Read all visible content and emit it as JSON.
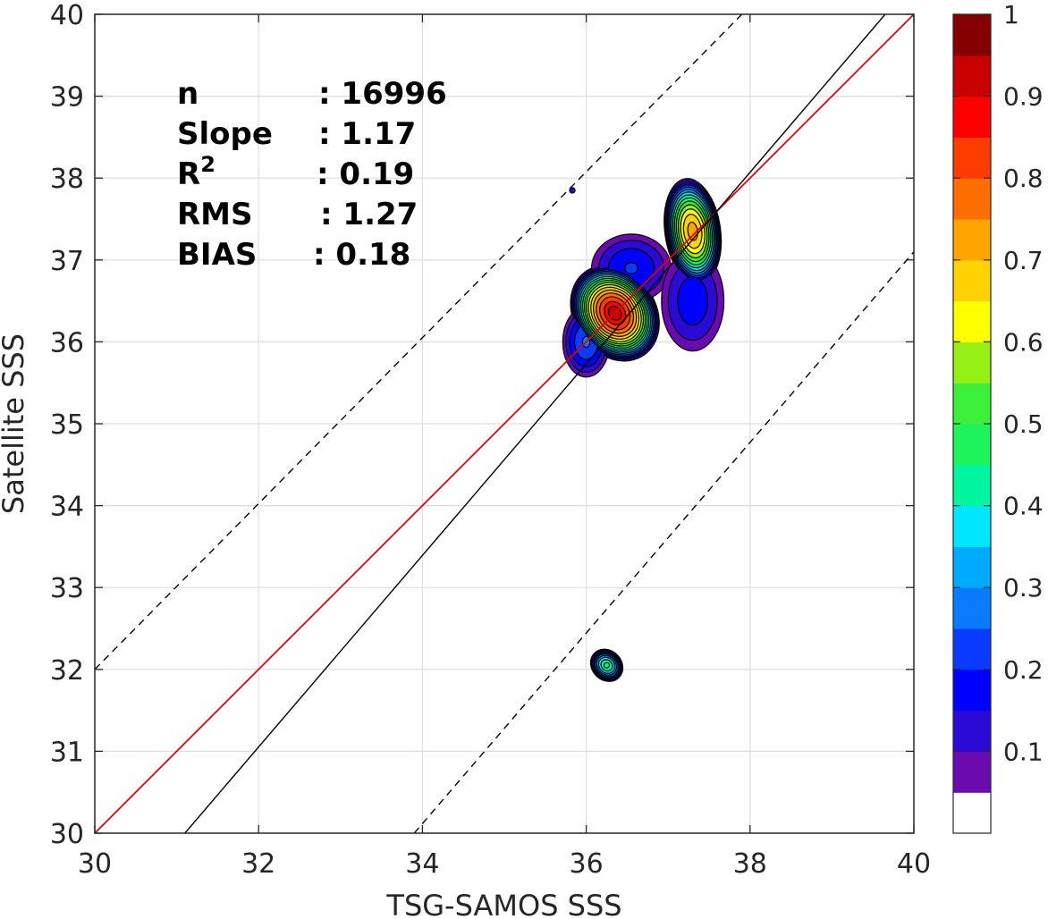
{
  "chart_data": {
    "type": "contour-density",
    "xlabel": "TSG-SAMOS SSS",
    "ylabel": "Satellite SSS",
    "xlim": [
      30,
      40
    ],
    "ylim": [
      30,
      40
    ],
    "x_ticks": [
      30,
      32,
      34,
      36,
      38,
      40
    ],
    "y_ticks": [
      30,
      31,
      32,
      33,
      34,
      35,
      36,
      37,
      38,
      39,
      40
    ],
    "grid": true,
    "stats": [
      {
        "label": "n",
        "sep": ":",
        "value": "16996"
      },
      {
        "label": "Slope",
        "sep": ":",
        "value": "1.17"
      },
      {
        "label": "R",
        "sup": "2",
        "sep": ":",
        "value": "0.19"
      },
      {
        "label": "RMS",
        "sep": ":",
        "value": "1.27"
      },
      {
        "label": "BIAS",
        "sep": ":",
        "value": "0.18"
      }
    ],
    "lines": [
      {
        "kind": "one-to-one",
        "color": "#e00000",
        "style": "solid",
        "points": [
          [
            30,
            30
          ],
          [
            40,
            40
          ]
        ]
      },
      {
        "kind": "regression",
        "color": "#000000",
        "style": "solid",
        "slope": 1.17,
        "points": [
          [
            31.1,
            30
          ],
          [
            39.65,
            40
          ]
        ]
      },
      {
        "kind": "upper-bound",
        "color": "#000000",
        "style": "dashed",
        "points": [
          [
            30,
            32.0
          ],
          [
            37.9,
            40
          ]
        ]
      },
      {
        "kind": "lower-bound",
        "color": "#000000",
        "style": "dashed",
        "points": [
          [
            33.9,
            30
          ],
          [
            40,
            37.1
          ]
        ]
      }
    ],
    "density_peaks": [
      {
        "x": 36.35,
        "y": 36.35,
        "peak": 0.9,
        "sx": 0.32,
        "sy": 0.4,
        "rotate": 35
      },
      {
        "x": 37.3,
        "y": 37.35,
        "peak": 0.72,
        "sx": 0.22,
        "sy": 0.42,
        "rotate": 8
      },
      {
        "x": 36.25,
        "y": 32.05,
        "peak": 0.45,
        "sx": 0.12,
        "sy": 0.14,
        "rotate": 45
      },
      {
        "x": 36.55,
        "y": 36.9,
        "peak": 0.2,
        "sx": 0.35,
        "sy": 0.3,
        "rotate": 0
      },
      {
        "x": 37.3,
        "y": 36.5,
        "peak": 0.18,
        "sx": 0.28,
        "sy": 0.45,
        "rotate": 0
      },
      {
        "x": 36.0,
        "y": 36.0,
        "peak": 0.25,
        "sx": 0.2,
        "sy": 0.3,
        "rotate": 0
      },
      {
        "x": 35.83,
        "y": 37.85,
        "peak": 0.12,
        "sx": 0.02,
        "sy": 0.02,
        "rotate": 0
      }
    ],
    "colorbar": {
      "ticks": [
        "0.1",
        "0.2",
        "0.3",
        "0.4",
        "0.5",
        "0.6",
        "0.7",
        "0.8",
        "0.9",
        "1"
      ],
      "range": [
        0,
        1
      ],
      "colors": [
        "#ffffff",
        "#6a0aaf",
        "#2a0ad4",
        "#0000ff",
        "#0a3aff",
        "#0a7aff",
        "#00aaff",
        "#00e6ff",
        "#00f5a0",
        "#1ef55a",
        "#3cf03c",
        "#96f014",
        "#ffff00",
        "#ffd200",
        "#ffa500",
        "#ff6e00",
        "#ff3c00",
        "#ff0000",
        "#c80000",
        "#870000"
      ]
    }
  }
}
